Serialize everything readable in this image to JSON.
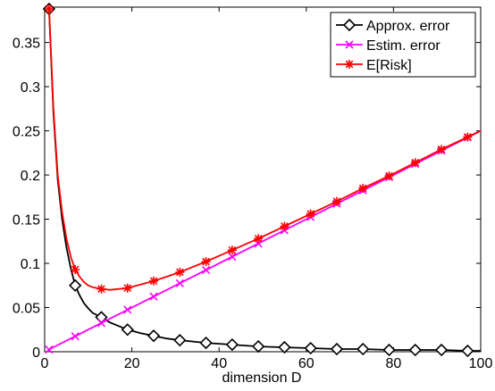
{
  "chart_data": {
    "type": "line",
    "xlabel": "dimension D",
    "ylabel": "",
    "title": "",
    "xlim": [
      0,
      100
    ],
    "ylim": [
      0,
      0.39
    ],
    "xticks": [
      0,
      20,
      40,
      60,
      80,
      100
    ],
    "yticks": [
      0,
      0.05,
      0.1,
      0.15,
      0.2,
      0.25,
      0.3,
      0.35
    ],
    "xtick_labels": [
      "0",
      "20",
      "40",
      "60",
      "80",
      "100"
    ],
    "ytick_labels": [
      "0",
      "0.05",
      "0.1",
      "0.15",
      "0.2",
      "0.25",
      "0.3",
      "0.35"
    ],
    "grid": false,
    "legend_position": "top-right",
    "series": [
      {
        "name": "Approx. error",
        "color": "#000000",
        "marker": "diamond",
        "x": [
          1,
          7,
          13,
          19,
          25,
          31,
          37,
          43,
          49,
          55,
          61,
          67,
          73,
          79,
          85,
          91,
          97
        ],
        "y": [
          0.388,
          0.075,
          0.039,
          0.025,
          0.018,
          0.013,
          0.01,
          0.008,
          0.006,
          0.005,
          0.004,
          0.003,
          0.003,
          0.002,
          0.002,
          0.002,
          0.001
        ],
        "curve_x": [
          1,
          2,
          3,
          4,
          5,
          6,
          7,
          8,
          9,
          10,
          11,
          13,
          15,
          17,
          19,
          22,
          25,
          28,
          31,
          37,
          43,
          49,
          55,
          61,
          67,
          73,
          79,
          85,
          91,
          97,
          100
        ],
        "curve_y": [
          0.388,
          0.27,
          0.195,
          0.15,
          0.118,
          0.094,
          0.075,
          0.064,
          0.055,
          0.049,
          0.044,
          0.039,
          0.033,
          0.029,
          0.025,
          0.021,
          0.018,
          0.015,
          0.013,
          0.01,
          0.008,
          0.006,
          0.005,
          0.004,
          0.003,
          0.003,
          0.002,
          0.002,
          0.002,
          0.001,
          0.001
        ]
      },
      {
        "name": "Estim. error",
        "color": "#ff00ff",
        "marker": "x",
        "x": [
          1,
          7,
          13,
          19,
          25,
          31,
          37,
          43,
          49,
          55,
          61,
          67,
          73,
          79,
          85,
          91,
          97
        ],
        "y": [
          0.0025,
          0.0175,
          0.0325,
          0.0475,
          0.0625,
          0.0775,
          0.0925,
          0.1075,
          0.1225,
          0.1375,
          0.1525,
          0.1675,
          0.1825,
          0.1975,
          0.2125,
          0.2275,
          0.2425
        ],
        "curve_x": [
          1,
          100
        ],
        "curve_y": [
          0.0025,
          0.25
        ]
      },
      {
        "name": "E[Risk]",
        "color": "#ff0000",
        "marker": "asterisk",
        "x": [
          1,
          7,
          13,
          19,
          25,
          31,
          37,
          43,
          49,
          55,
          61,
          67,
          73,
          79,
          85,
          91,
          97
        ],
        "y": [
          0.388,
          0.093,
          0.071,
          0.072,
          0.08,
          0.09,
          0.102,
          0.115,
          0.128,
          0.142,
          0.156,
          0.17,
          0.185,
          0.199,
          0.214,
          0.229,
          0.243
        ],
        "curve_x": [
          1,
          2,
          3,
          4,
          5,
          6,
          7,
          8,
          9,
          10,
          11,
          13,
          15,
          17,
          19,
          22,
          25,
          28,
          31,
          37,
          43,
          49,
          55,
          61,
          67,
          73,
          79,
          85,
          91,
          97,
          100
        ],
        "curve_y": [
          0.388,
          0.275,
          0.2,
          0.158,
          0.128,
          0.107,
          0.093,
          0.085,
          0.079,
          0.075,
          0.073,
          0.071,
          0.07,
          0.071,
          0.072,
          0.076,
          0.08,
          0.085,
          0.09,
          0.102,
          0.115,
          0.128,
          0.142,
          0.156,
          0.17,
          0.185,
          0.199,
          0.214,
          0.229,
          0.243,
          0.25
        ]
      }
    ]
  }
}
